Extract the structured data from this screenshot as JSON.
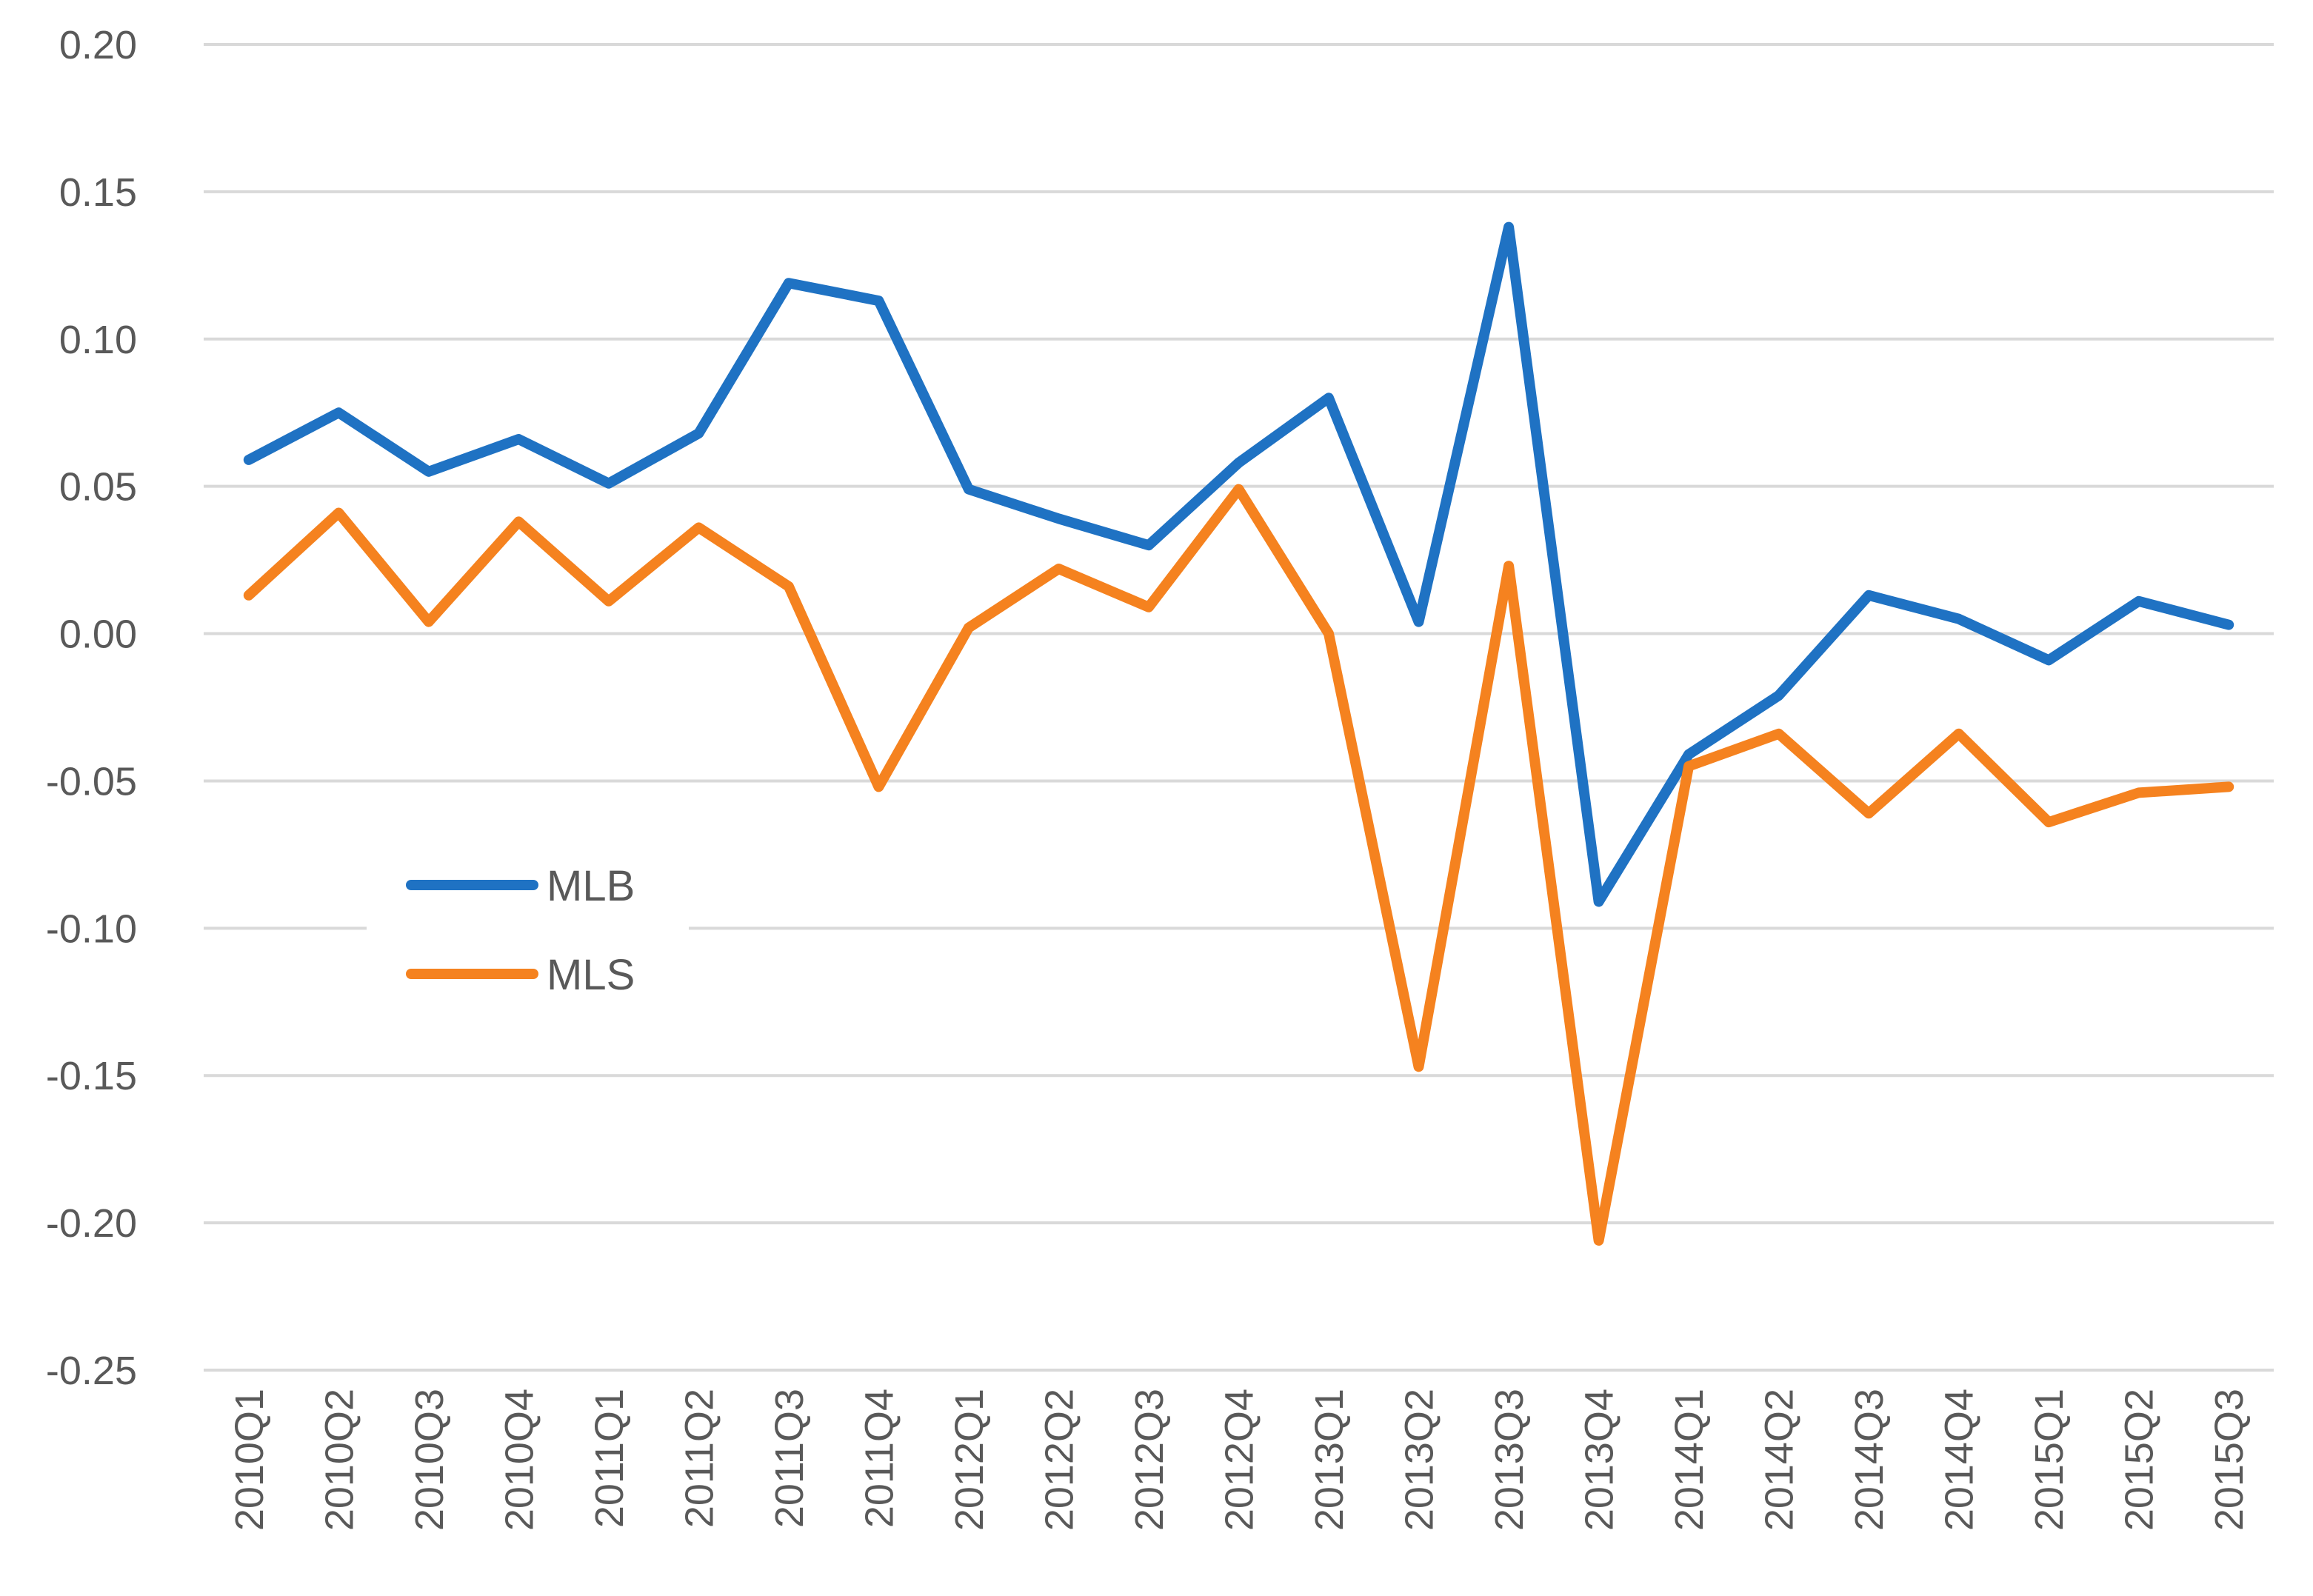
{
  "chart_data": {
    "type": "line",
    "title": "",
    "xlabel": "",
    "ylabel": "",
    "ylim": [
      -0.25,
      0.2
    ],
    "yticks": [
      "0.20",
      "0.15",
      "0.10",
      "0.05",
      "0.00",
      "-0.05",
      "-0.10",
      "-0.15",
      "-0.20",
      "-0.25"
    ],
    "ytick_values": [
      0.2,
      0.15,
      0.1,
      0.05,
      0.0,
      -0.05,
      -0.1,
      -0.15,
      -0.2,
      -0.25
    ],
    "grid": true,
    "legend_position": "center-left",
    "categories": [
      "2010Q1",
      "2010Q2",
      "2010Q3",
      "2010Q4",
      "2011Q1",
      "2011Q2",
      "2011Q3",
      "2011Q4",
      "2012Q1",
      "2012Q2",
      "2012Q3",
      "2012Q4",
      "2013Q1",
      "2013Q2",
      "2013Q3",
      "2013Q4",
      "2014Q1",
      "2014Q2",
      "2014Q3",
      "2014Q4",
      "2015Q1",
      "2015Q2",
      "2015Q3"
    ],
    "series": [
      {
        "name": "MLB",
        "color": "#1f72c3",
        "values": [
          0.059,
          0.075,
          0.055,
          0.066,
          0.051,
          0.068,
          0.119,
          0.113,
          0.049,
          0.039,
          0.03,
          0.058,
          0.08,
          0.004,
          0.138,
          -0.091,
          -0.041,
          -0.021,
          0.013,
          0.005,
          -0.009,
          0.011,
          0.003
        ]
      },
      {
        "name": "MLS",
        "color": "#f5821f",
        "values": [
          0.013,
          0.041,
          0.004,
          0.038,
          0.011,
          0.036,
          0.016,
          -0.052,
          0.002,
          0.022,
          0.009,
          0.049,
          0.0,
          -0.147,
          0.023,
          -0.206,
          -0.045,
          -0.034,
          -0.061,
          -0.034,
          -0.064,
          -0.054,
          -0.052
        ]
      }
    ]
  }
}
